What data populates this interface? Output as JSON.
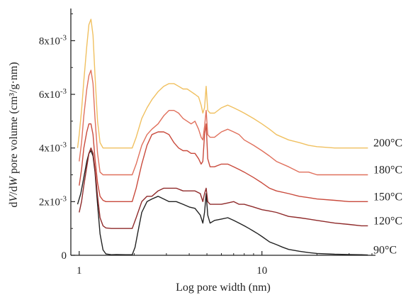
{
  "chart_data": {
    "type": "line",
    "xlabel": "Log pore width (nm)",
    "ylabel_parts": [
      "d",
      "V",
      "/d",
      "W",
      " pore volume (cm³/g·nm)"
    ],
    "x_scale": "log",
    "xlim": [
      0.9,
      40
    ],
    "ylim": [
      0,
      0.0092
    ],
    "x_ticks": [
      1,
      10
    ],
    "x_tick_labels": [
      "1",
      "10"
    ],
    "y_ticks": [
      0,
      0.002,
      0.004,
      0.006,
      0.008
    ],
    "y_tick_labels": [
      {
        "base": "0",
        "exp": ""
      },
      {
        "base": "2x10",
        "exp": "-3"
      },
      {
        "base": "4x10",
        "exp": "-3"
      },
      {
        "base": "6x10",
        "exp": "-3"
      },
      {
        "base": "8x10",
        "exp": "-3"
      }
    ],
    "grid": false,
    "series": [
      {
        "name": "90°C",
        "color": "#222222",
        "x": [
          0.98,
          1.02,
          1.06,
          1.1,
          1.13,
          1.16,
          1.19,
          1.22,
          1.26,
          1.3,
          1.35,
          1.4,
          1.5,
          1.6,
          1.8,
          1.95,
          2.02,
          2.1,
          2.2,
          2.35,
          2.5,
          2.7,
          2.9,
          3.1,
          3.4,
          3.7,
          4.0,
          4.3,
          4.6,
          4.75,
          4.85,
          4.95,
          5.05,
          5.2,
          5.5,
          6.0,
          6.5,
          7.0,
          7.5,
          8.0,
          8.5,
          9.0,
          9.5,
          10.0,
          11.0,
          12.0,
          13.0,
          14.0,
          16.0,
          18.0,
          20.0,
          25.0,
          30.0,
          35.0,
          38.0
        ],
        "y": [
          0.0019,
          0.0023,
          0.0029,
          0.0035,
          0.0038,
          0.0039,
          0.0037,
          0.0031,
          0.0019,
          0.0008,
          0.0002,
          5e-05,
          2e-05,
          3e-05,
          2e-05,
          2e-05,
          0.0003,
          0.0009,
          0.0016,
          0.002,
          0.0021,
          0.0022,
          0.0021,
          0.002,
          0.002,
          0.0019,
          0.0018,
          0.00175,
          0.0015,
          0.0012,
          0.0016,
          0.0023,
          0.0015,
          0.0012,
          0.0013,
          0.00135,
          0.0014,
          0.0013,
          0.0012,
          0.0011,
          0.001,
          0.0009,
          0.0008,
          0.0007,
          0.0005,
          0.0004,
          0.0003,
          0.00022,
          0.00015,
          0.0001,
          7e-05,
          4e-05,
          3e-05,
          2e-05,
          1e-05
        ]
      },
      {
        "name": "120°C",
        "color": "#8f2a2a",
        "x": [
          1.0,
          1.03,
          1.06,
          1.1,
          1.13,
          1.16,
          1.19,
          1.22,
          1.26,
          1.3,
          1.35,
          1.4,
          1.5,
          1.6,
          1.8,
          1.95,
          2.05,
          2.2,
          2.35,
          2.5,
          2.7,
          2.9,
          3.1,
          3.4,
          3.7,
          4.0,
          4.3,
          4.6,
          4.75,
          4.85,
          4.95,
          5.05,
          5.2,
          5.5,
          6.0,
          6.5,
          7.0,
          7.5,
          8.0,
          9.0,
          10.0,
          11.0,
          12.0,
          14.0,
          16.0,
          18.0,
          20.0,
          25.0,
          30.0,
          35.0,
          38.0
        ],
        "y": [
          0.0016,
          0.002,
          0.0026,
          0.0033,
          0.0038,
          0.004,
          0.0038,
          0.0032,
          0.0022,
          0.0014,
          0.0011,
          0.00102,
          0.001,
          0.001,
          0.001,
          0.001,
          0.0014,
          0.002,
          0.0022,
          0.0022,
          0.0024,
          0.0025,
          0.0025,
          0.0025,
          0.0024,
          0.0024,
          0.0024,
          0.0023,
          0.002,
          0.0023,
          0.0025,
          0.002,
          0.0019,
          0.0019,
          0.0019,
          0.00195,
          0.002,
          0.0019,
          0.0019,
          0.0018,
          0.0017,
          0.00165,
          0.0016,
          0.00145,
          0.0014,
          0.00135,
          0.0013,
          0.0012,
          0.00115,
          0.0011,
          0.0011
        ]
      },
      {
        "name": "150°C",
        "color": "#c94a3c",
        "x": [
          1.0,
          1.03,
          1.06,
          1.1,
          1.13,
          1.16,
          1.19,
          1.22,
          1.26,
          1.3,
          1.35,
          1.4,
          1.5,
          1.6,
          1.8,
          1.95,
          2.05,
          2.2,
          2.35,
          2.5,
          2.7,
          2.9,
          3.1,
          3.3,
          3.5,
          3.7,
          3.9,
          4.1,
          4.3,
          4.5,
          4.65,
          4.75,
          4.85,
          4.95,
          5.05,
          5.2,
          5.5,
          6.0,
          6.5,
          7.0,
          7.5,
          8.0,
          9.0,
          10.0,
          11.0,
          12.0,
          14.0,
          16.0,
          18.0,
          20.0,
          25.0,
          30.0,
          35.0,
          38.0
        ],
        "y": [
          0.0026,
          0.0032,
          0.004,
          0.0046,
          0.0049,
          0.0049,
          0.0045,
          0.0036,
          0.0027,
          0.0022,
          0.00205,
          0.002,
          0.002,
          0.002,
          0.002,
          0.002,
          0.0025,
          0.0034,
          0.0041,
          0.0045,
          0.0046,
          0.0046,
          0.0045,
          0.0042,
          0.004,
          0.0039,
          0.0039,
          0.0038,
          0.0038,
          0.0036,
          0.0034,
          0.0035,
          0.0045,
          0.0049,
          0.0036,
          0.0033,
          0.0033,
          0.0034,
          0.0034,
          0.0033,
          0.0032,
          0.0031,
          0.0029,
          0.0027,
          0.0025,
          0.0024,
          0.0023,
          0.0022,
          0.00215,
          0.0021,
          0.00205,
          0.002,
          0.002,
          0.002
        ]
      },
      {
        "name": "180°C",
        "color": "#e0705c",
        "x": [
          1.0,
          1.03,
          1.06,
          1.1,
          1.13,
          1.16,
          1.19,
          1.22,
          1.26,
          1.3,
          1.35,
          1.4,
          1.5,
          1.6,
          1.8,
          1.95,
          2.05,
          2.2,
          2.35,
          2.5,
          2.7,
          2.9,
          3.1,
          3.3,
          3.5,
          3.7,
          3.9,
          4.1,
          4.3,
          4.5,
          4.65,
          4.75,
          4.85,
          4.95,
          5.05,
          5.2,
          5.5,
          6.0,
          6.5,
          7.0,
          7.5,
          8.0,
          9.0,
          10.0,
          11.0,
          12.0,
          14.0,
          16.0,
          18.0,
          20.0,
          25.0,
          30.0,
          35.0,
          38.0
        ],
        "y": [
          0.0035,
          0.0042,
          0.0052,
          0.0062,
          0.0067,
          0.0069,
          0.0064,
          0.0051,
          0.0038,
          0.0031,
          0.003,
          0.003,
          0.003,
          0.003,
          0.003,
          0.003,
          0.0034,
          0.0041,
          0.0045,
          0.0047,
          0.0049,
          0.0052,
          0.0054,
          0.0054,
          0.0053,
          0.0051,
          0.005,
          0.0049,
          0.005,
          0.0047,
          0.0044,
          0.0043,
          0.0048,
          0.0054,
          0.0045,
          0.0044,
          0.0044,
          0.0046,
          0.0047,
          0.0046,
          0.0045,
          0.0043,
          0.0041,
          0.0039,
          0.0037,
          0.0035,
          0.0033,
          0.0031,
          0.0031,
          0.003,
          0.003,
          0.003,
          0.003,
          0.003
        ]
      },
      {
        "name": "200°C",
        "color": "#f0c060",
        "x": [
          0.98,
          1.0,
          1.03,
          1.06,
          1.1,
          1.13,
          1.16,
          1.19,
          1.22,
          1.26,
          1.3,
          1.35,
          1.4,
          1.5,
          1.6,
          1.8,
          1.95,
          2.05,
          2.2,
          2.35,
          2.5,
          2.7,
          2.9,
          3.1,
          3.3,
          3.5,
          3.7,
          3.9,
          4.1,
          4.3,
          4.5,
          4.65,
          4.75,
          4.85,
          4.95,
          5.05,
          5.2,
          5.5,
          6.0,
          6.5,
          7.0,
          7.5,
          8.0,
          9.0,
          10.0,
          11.0,
          12.0,
          14.0,
          16.0,
          18.0,
          20.0,
          25.0,
          30.0,
          35.0,
          38.0
        ],
        "y": [
          0.004,
          0.0045,
          0.0054,
          0.0065,
          0.0078,
          0.0086,
          0.0088,
          0.0082,
          0.0067,
          0.005,
          0.0042,
          0.004,
          0.004,
          0.004,
          0.004,
          0.004,
          0.004,
          0.0044,
          0.0051,
          0.0055,
          0.0058,
          0.0061,
          0.0063,
          0.0064,
          0.0064,
          0.0063,
          0.0062,
          0.0062,
          0.0061,
          0.006,
          0.0059,
          0.0056,
          0.0053,
          0.0055,
          0.0063,
          0.0054,
          0.0053,
          0.0053,
          0.0055,
          0.0056,
          0.0055,
          0.0054,
          0.0053,
          0.0051,
          0.0049,
          0.0047,
          0.0045,
          0.0043,
          0.0042,
          0.0041,
          0.00405,
          0.004,
          0.004,
          0.004,
          0.004
        ]
      }
    ]
  }
}
